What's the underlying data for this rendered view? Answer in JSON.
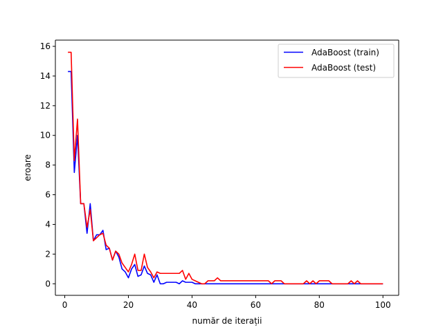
{
  "chart_data": {
    "type": "line",
    "title": "",
    "xlabel": "număr de iterații",
    "ylabel": "eroare",
    "xlim": [
      -2.95,
      104.95
    ],
    "ylim": [
      -0.78,
      16.42
    ],
    "xticks": [
      0,
      20,
      40,
      60,
      80,
      100
    ],
    "yticks": [
      0,
      2,
      4,
      6,
      8,
      10,
      12,
      14,
      16
    ],
    "grid": false,
    "legend_position": "top-right",
    "series": [
      {
        "name": "AdaBoost (train)",
        "color": "#0000ff",
        "x": [
          1,
          2,
          3,
          4,
          5,
          6,
          7,
          8,
          9,
          10,
          11,
          12,
          13,
          14,
          15,
          16,
          17,
          18,
          19,
          20,
          21,
          22,
          23,
          24,
          25,
          26,
          27,
          28,
          29,
          30,
          31,
          32,
          33,
          34,
          35,
          36,
          37,
          38,
          39,
          40,
          41,
          42,
          43,
          44,
          45,
          46,
          47,
          48,
          49,
          50,
          51,
          52,
          53,
          54,
          55,
          56,
          57,
          58,
          59,
          60,
          61,
          62,
          63,
          64,
          65,
          66,
          67,
          68,
          69,
          70,
          71,
          72,
          73,
          74,
          75,
          76,
          77,
          78,
          79,
          80,
          81,
          82,
          83,
          84,
          85,
          86,
          87,
          88,
          89,
          90,
          91,
          92,
          93,
          94,
          95,
          96,
          97,
          98,
          99,
          100
        ],
        "y": [
          14.3,
          14.3,
          7.5,
          10.0,
          5.4,
          5.4,
          3.4,
          5.4,
          2.9,
          3.3,
          3.3,
          3.6,
          2.3,
          2.4,
          1.6,
          2.2,
          1.8,
          1.0,
          0.8,
          0.4,
          1.0,
          1.3,
          0.5,
          0.6,
          1.2,
          0.7,
          0.6,
          0.1,
          0.6,
          0.0,
          0.0,
          0.1,
          0.1,
          0.1,
          0.1,
          0.0,
          0.2,
          0.1,
          0.1,
          0.1,
          0.0,
          0.0,
          0.0,
          0.0,
          0.0,
          0.0,
          0.0,
          0.0,
          0.0,
          0.0,
          0.0,
          0.0,
          0.0,
          0.0,
          0.0,
          0.0,
          0.0,
          0.0,
          0.0,
          0.0,
          0.0,
          0.0,
          0.0,
          0.0,
          0.0,
          0.0,
          0.0,
          0.0,
          0.0,
          0.0,
          0.0,
          0.0,
          0.0,
          0.0,
          0.0,
          0.0,
          0.0,
          0.0,
          0.0,
          0.0,
          0.0,
          0.0,
          0.0,
          0.0,
          0.0,
          0.0,
          0.0,
          0.0,
          0.0,
          0.0,
          0.0,
          0.0,
          0.0,
          0.0,
          0.0,
          0.0,
          0.0,
          0.0,
          0.0,
          0.0
        ]
      },
      {
        "name": "AdaBoost (test)",
        "color": "#ff0000",
        "x": [
          1,
          2,
          3,
          4,
          5,
          6,
          7,
          8,
          9,
          10,
          11,
          12,
          13,
          14,
          15,
          16,
          17,
          18,
          19,
          20,
          21,
          22,
          23,
          24,
          25,
          26,
          27,
          28,
          29,
          30,
          31,
          32,
          33,
          34,
          35,
          36,
          37,
          38,
          39,
          40,
          41,
          42,
          43,
          44,
          45,
          46,
          47,
          48,
          49,
          50,
          51,
          52,
          53,
          54,
          55,
          56,
          57,
          58,
          59,
          60,
          61,
          62,
          63,
          64,
          65,
          66,
          67,
          68,
          69,
          70,
          71,
          72,
          73,
          74,
          75,
          76,
          77,
          78,
          79,
          80,
          81,
          82,
          83,
          84,
          85,
          86,
          87,
          88,
          89,
          90,
          91,
          92,
          93,
          94,
          95,
          96,
          97,
          98,
          99,
          100
        ],
        "y": [
          15.6,
          15.6,
          8.3,
          11.1,
          5.4,
          5.4,
          3.8,
          5.0,
          2.9,
          3.1,
          3.3,
          3.4,
          2.6,
          2.4,
          1.6,
          2.2,
          2.0,
          1.4,
          1.1,
          0.8,
          1.3,
          2.0,
          0.9,
          0.9,
          2.0,
          1.1,
          0.8,
          0.4,
          0.8,
          0.7,
          0.7,
          0.7,
          0.7,
          0.7,
          0.7,
          0.7,
          0.9,
          0.3,
          0.7,
          0.3,
          0.2,
          0.1,
          0.0,
          0.0,
          0.2,
          0.2,
          0.2,
          0.4,
          0.2,
          0.2,
          0.2,
          0.2,
          0.2,
          0.2,
          0.2,
          0.2,
          0.2,
          0.2,
          0.2,
          0.2,
          0.2,
          0.2,
          0.2,
          0.2,
          0.0,
          0.2,
          0.2,
          0.2,
          0.0,
          0.0,
          0.0,
          0.0,
          0.0,
          0.0,
          0.0,
          0.2,
          0.0,
          0.2,
          0.0,
          0.2,
          0.2,
          0.2,
          0.2,
          0.0,
          0.0,
          0.0,
          0.0,
          0.0,
          0.0,
          0.2,
          0.0,
          0.2,
          0.0,
          0.0,
          0.0,
          0.0,
          0.0,
          0.0,
          0.0,
          0.0
        ]
      }
    ]
  }
}
